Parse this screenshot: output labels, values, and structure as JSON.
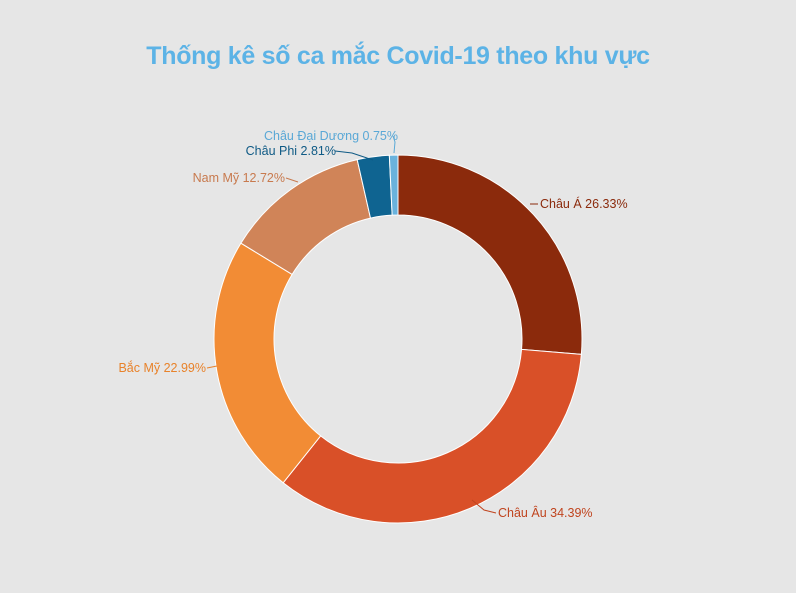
{
  "chart_data": {
    "type": "pie",
    "variant": "donut",
    "title": "Thống kê số ca mắc Covid-19 theo khu vực",
    "unit": "%",
    "legend": "none",
    "slices": [
      {
        "name": "Châu Á",
        "value": 26.33,
        "label": "Châu Á 26.33%",
        "color": "#8b2a0c",
        "label_color": "#8b2a0c"
      },
      {
        "name": "Châu Âu",
        "value": 34.39,
        "label": "Châu Âu 34.39%",
        "color": "#d95028",
        "label_color": "#c0441e"
      },
      {
        "name": "Bắc Mỹ",
        "value": 22.99,
        "label": "Bắc Mỹ 22.99%",
        "color": "#f28c35",
        "label_color": "#e8822a"
      },
      {
        "name": "Nam Mỹ",
        "value": 12.72,
        "label": "Nam Mỹ 12.72%",
        "color": "#d08458",
        "label_color": "#c87a4e"
      },
      {
        "name": "Châu Phi",
        "value": 2.81,
        "label": "Châu Phi  2.81%",
        "color": "#0f6491",
        "label_color": "#0f5a85"
      },
      {
        "name": "Châu Đại Dương",
        "value": 0.75,
        "label": "Châu Đại Dương 0.75%",
        "color": "#6ab2dc",
        "label_color": "#5aa8d6"
      }
    ]
  }
}
